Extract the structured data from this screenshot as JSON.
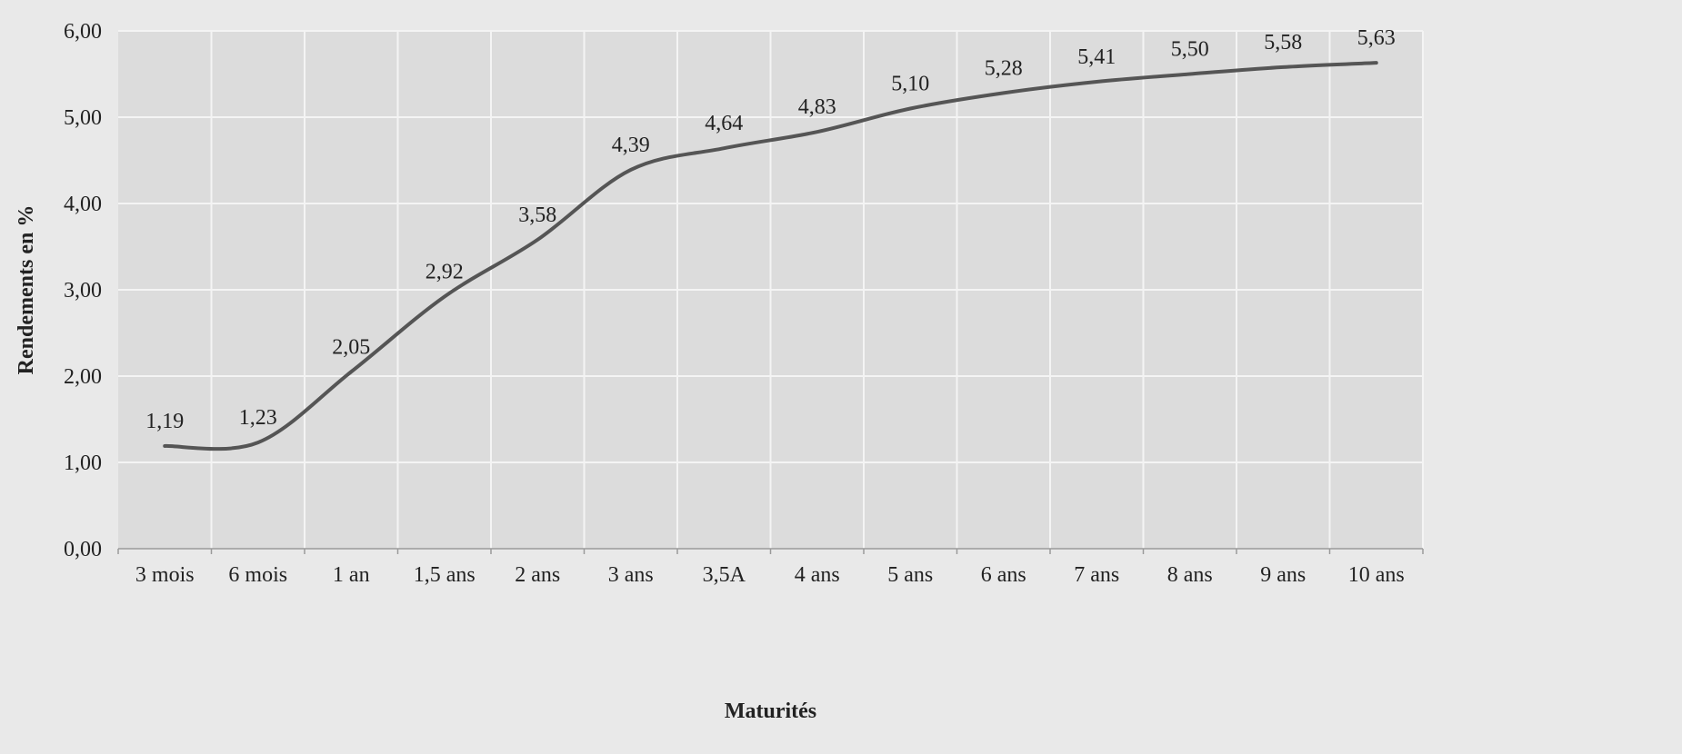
{
  "chart_data": {
    "type": "line",
    "categories": [
      "3 mois",
      "6 mois",
      "1 an",
      "1,5 ans",
      "2 ans",
      "3 ans",
      "3,5A",
      "4 ans",
      "5 ans",
      "6 ans",
      "7 ans",
      "8 ans",
      "9 ans",
      "10 ans"
    ],
    "series": [
      {
        "values": [
          1.19,
          1.23,
          2.05,
          2.92,
          3.58,
          4.39,
          4.64,
          4.83,
          5.1,
          5.28,
          5.41,
          5.5,
          5.58,
          5.63
        ],
        "labels": [
          "1,19",
          "1,23",
          "2,05",
          "2,92",
          "3,58",
          "4,39",
          "4,64",
          "4,83",
          "5,10",
          "5,28",
          "5,41",
          "5,50",
          "5,58",
          "5,63"
        ]
      }
    ],
    "xlabel": "Maturités",
    "ylabel": "Rendements en %",
    "ylim": [
      0,
      6
    ],
    "yticks": [
      0,
      1,
      2,
      3,
      4,
      5,
      6
    ],
    "ytick_labels": [
      "0,00",
      "1,00",
      "2,00",
      "3,00",
      "4,00",
      "5,00",
      "6,00"
    ],
    "grid": true,
    "line_color": "#555555",
    "plot_background": "#dcdcdc",
    "grid_color": "#f4f4f4"
  }
}
